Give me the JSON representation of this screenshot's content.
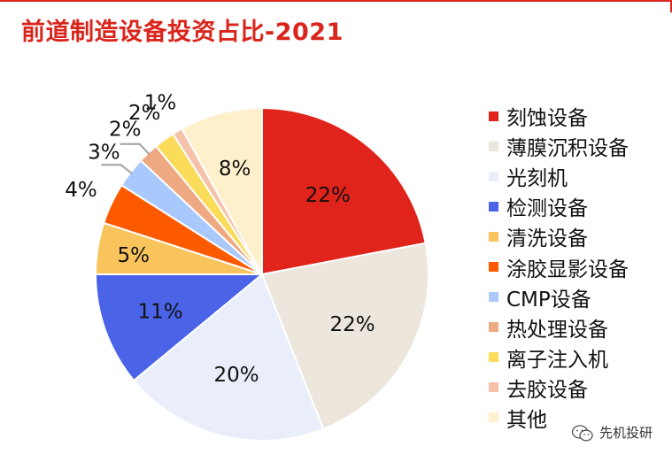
{
  "title": "前道制造设备投资占比-2021",
  "watermark": {
    "text": "先机投研",
    "icon": "wechat-icon"
  },
  "chart_data": {
    "type": "pie",
    "title": "前道制造设备投资占比-2021",
    "start": "12 o'clock",
    "direction": "clockwise",
    "legend_position": "right",
    "slices": [
      {
        "name": "刻蚀设备",
        "value": 22,
        "label": "22%",
        "color": "#e0231b",
        "label_color": "#111111"
      },
      {
        "name": "薄膜沉积设备",
        "value": 22,
        "label": "22%",
        "color": "#ece6dc",
        "label_color": "#111111"
      },
      {
        "name": "光刻机",
        "value": 20,
        "label": "20%",
        "color": "#e9eefa",
        "label_color": "#111111"
      },
      {
        "name": "检测设备",
        "value": 11,
        "label": "11%",
        "color": "#4a63e7",
        "label_color": "#111111"
      },
      {
        "name": "清洗设备",
        "value": 5,
        "label": "5%",
        "color": "#fac45d",
        "label_color": "#111111"
      },
      {
        "name": "涂胶显影设备",
        "value": 4,
        "label": "4%",
        "color": "#fd5a00",
        "label_color": "#111111"
      },
      {
        "name": "CMP设备",
        "value": 3,
        "label": "3%",
        "color": "#a9c8fb",
        "label_color": "#111111"
      },
      {
        "name": "热处理设备",
        "value": 2,
        "label": "2%",
        "color": "#eea983",
        "label_color": "#111111"
      },
      {
        "name": "离子注入机",
        "value": 2,
        "label": "2%",
        "color": "#fadc5a",
        "label_color": "#111111"
      },
      {
        "name": "去胶设备",
        "value": 1,
        "label": "1%",
        "color": "#f5c1a9",
        "label_color": "#111111"
      },
      {
        "name": "其他",
        "value": 8,
        "label": "8%",
        "color": "#fff0cc",
        "label_color": "#111111"
      }
    ]
  }
}
